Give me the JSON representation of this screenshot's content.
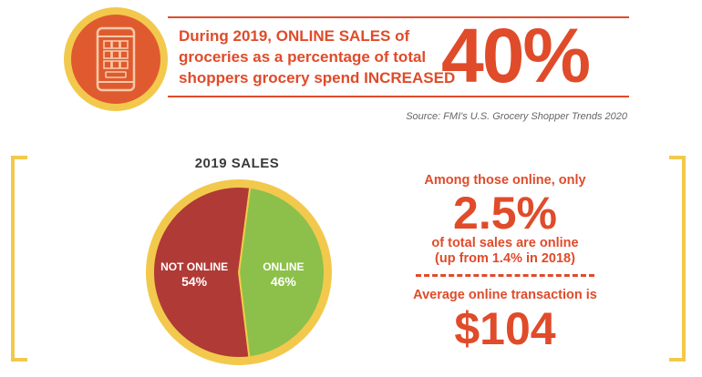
{
  "header": {
    "headline_lines": [
      "During 2019, ONLINE SALES of",
      "groceries as a percentage of total",
      "shoppers grocery spend INCREASED"
    ],
    "big_stat": "40%",
    "source": "Source: FMI's U.S. Grocery Shopper Trends 2020",
    "icon": "smartphone-grocery-icon"
  },
  "stats": {
    "intro": "Among those online, only",
    "main": "2.5%",
    "line1": "of total sales are online",
    "line2": "(up from 1.4% in 2018)",
    "avg_label": "Average online transaction is",
    "avg_value": "$104"
  },
  "colors": {
    "accent": "#e04b2a",
    "gold": "#f2c94c",
    "not_online": "#b03a36",
    "online": "#8cc04a"
  },
  "chart_data": {
    "type": "pie",
    "title": "2019 SALES",
    "slices": [
      {
        "label": "ONLINE",
        "value": 46,
        "display": "46%",
        "color": "#8cc04a"
      },
      {
        "label": "NOT ONLINE",
        "value": 54,
        "display": "54%",
        "color": "#b03a36"
      }
    ]
  }
}
